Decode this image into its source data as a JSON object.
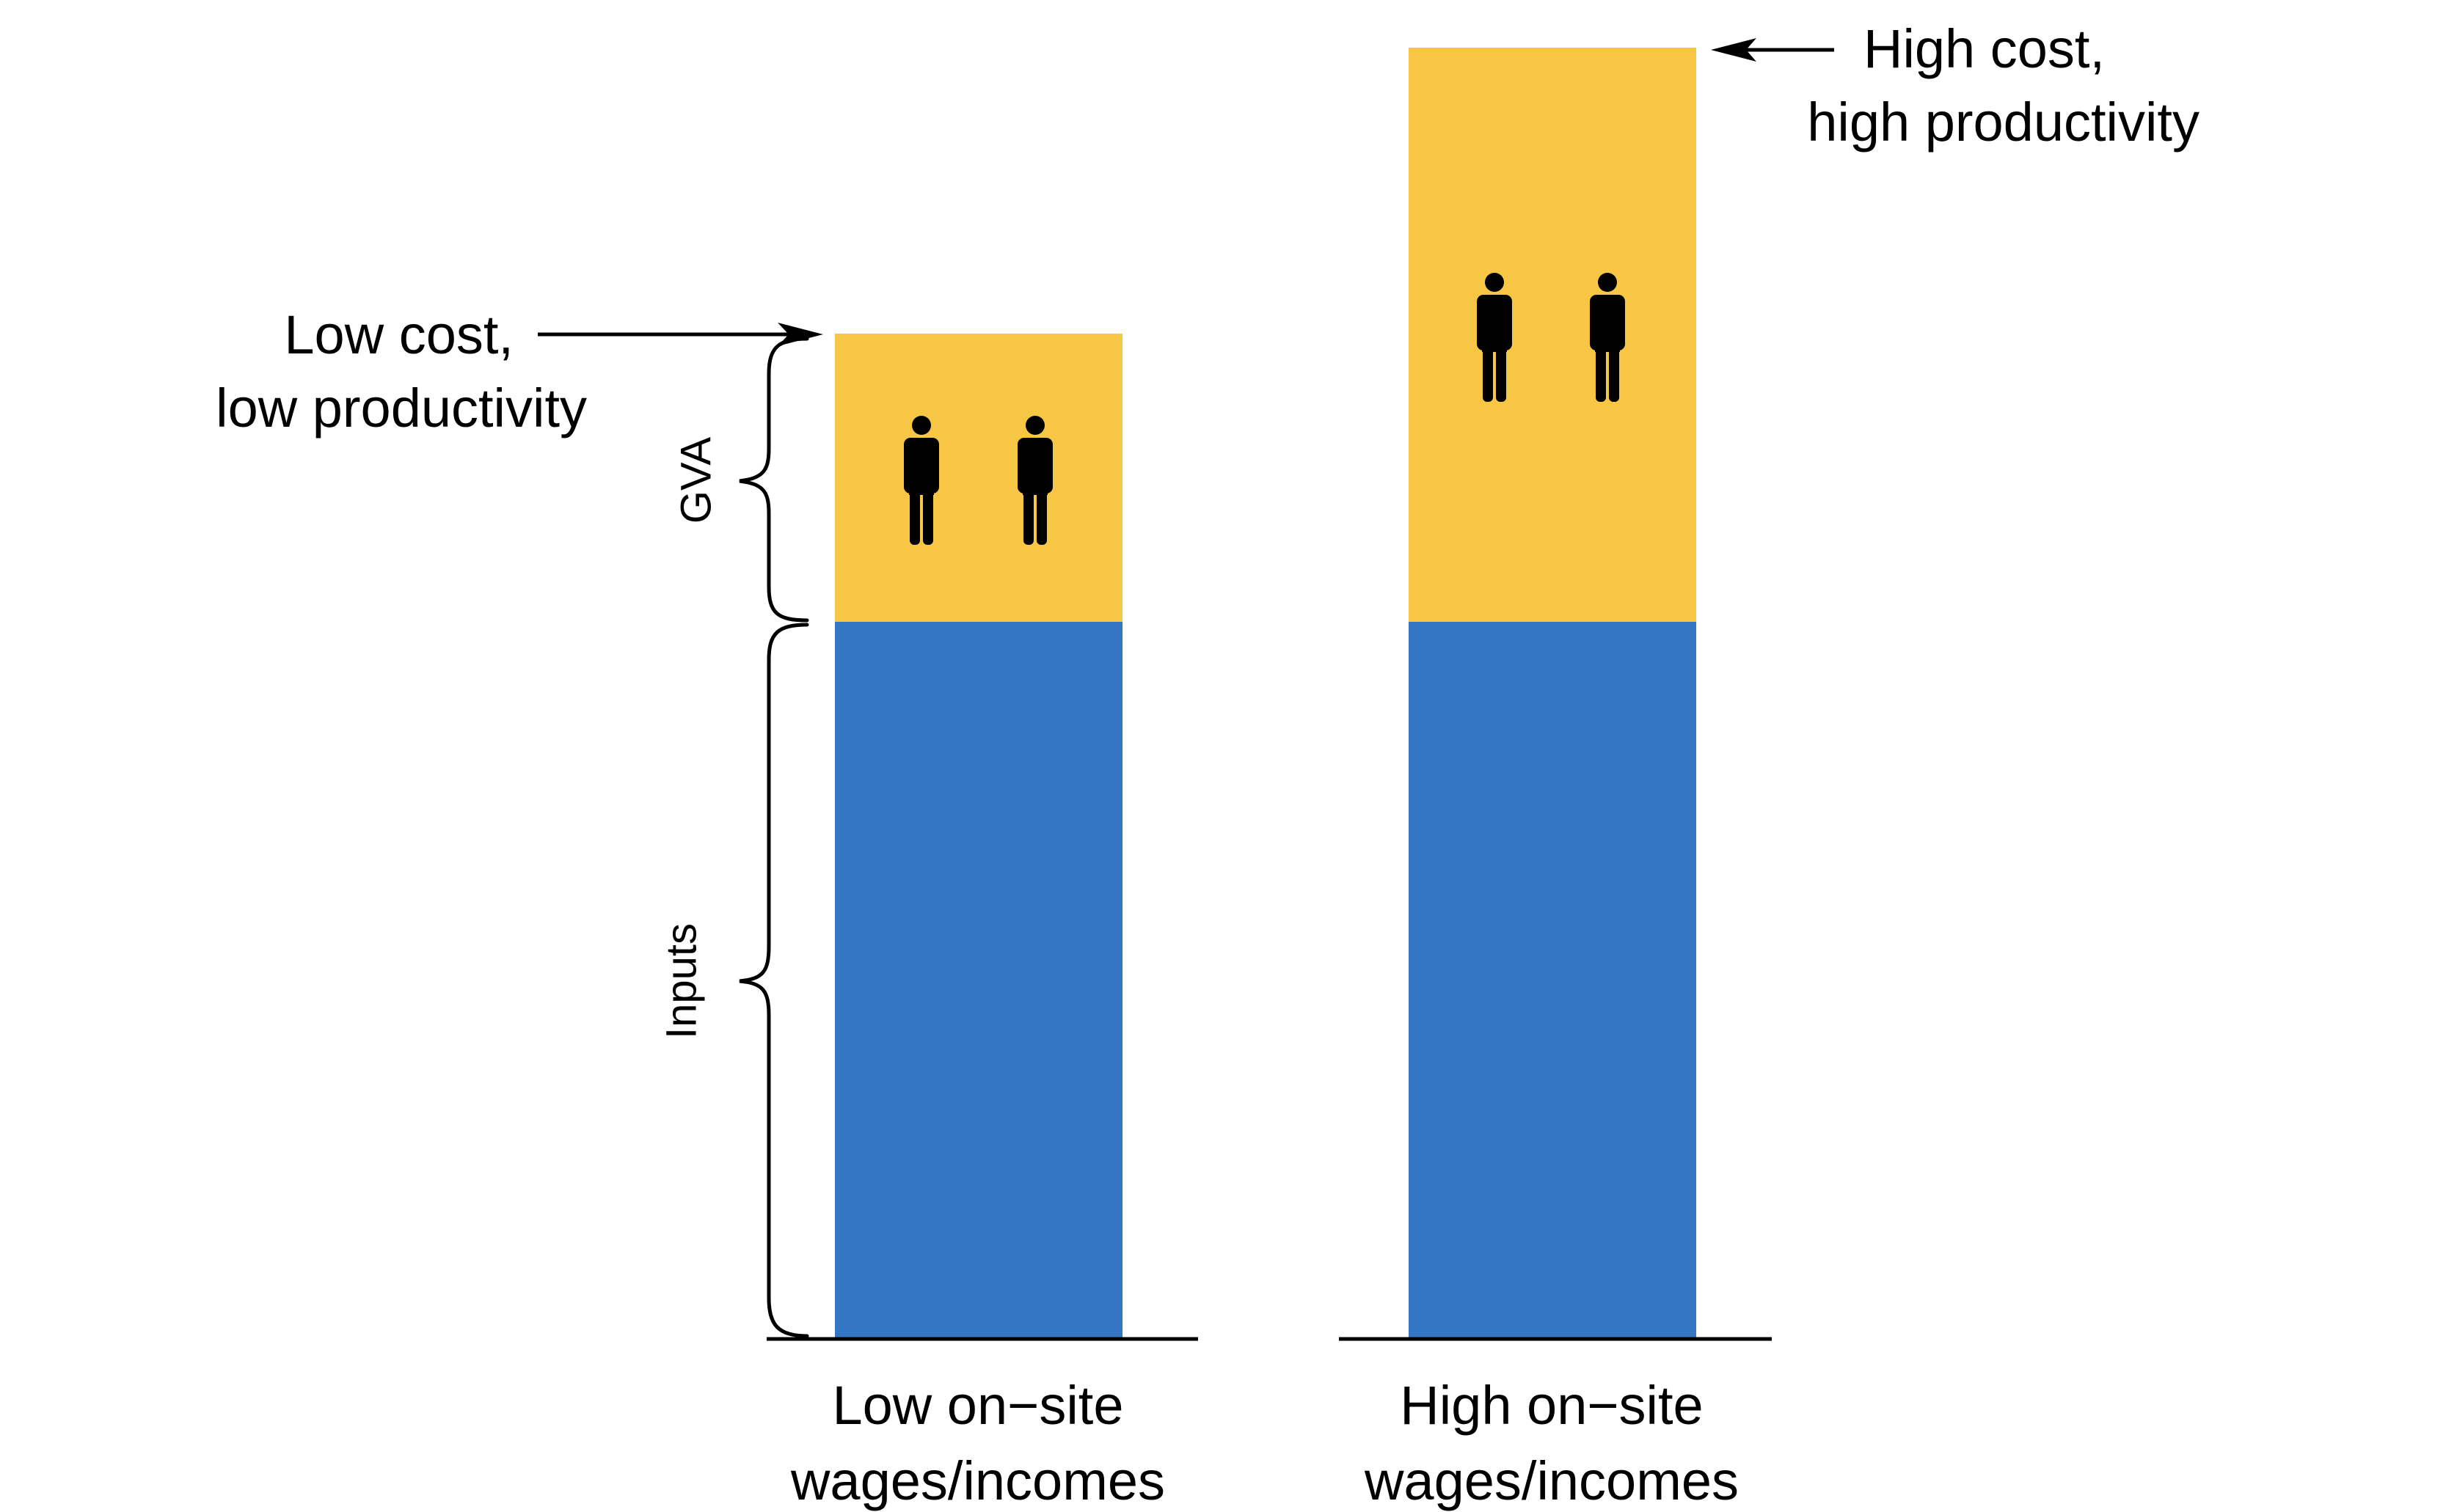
{
  "colors": {
    "inputs": "#3476c4",
    "gva": "#f6c644",
    "ink": "#000000",
    "background": "#ffffff"
  },
  "side_labels": {
    "gva": "GVA",
    "inputs": "Inputs"
  },
  "left_bar": {
    "label_line1": "Low on−site",
    "label_line2": "wages/incomes",
    "annotation_line1": "Low cost,",
    "annotation_line2": "low productivity",
    "workers_count": 2
  },
  "right_bar": {
    "label_line1": "High on−site",
    "label_line2": "wages/incomes",
    "annotation_line1": "High cost,",
    "annotation_line2": "high productivity",
    "workers_count": 2
  },
  "icons": {
    "worker": "person-icon",
    "arrow": "arrow-icon",
    "brace": "curly-brace-icon"
  }
}
